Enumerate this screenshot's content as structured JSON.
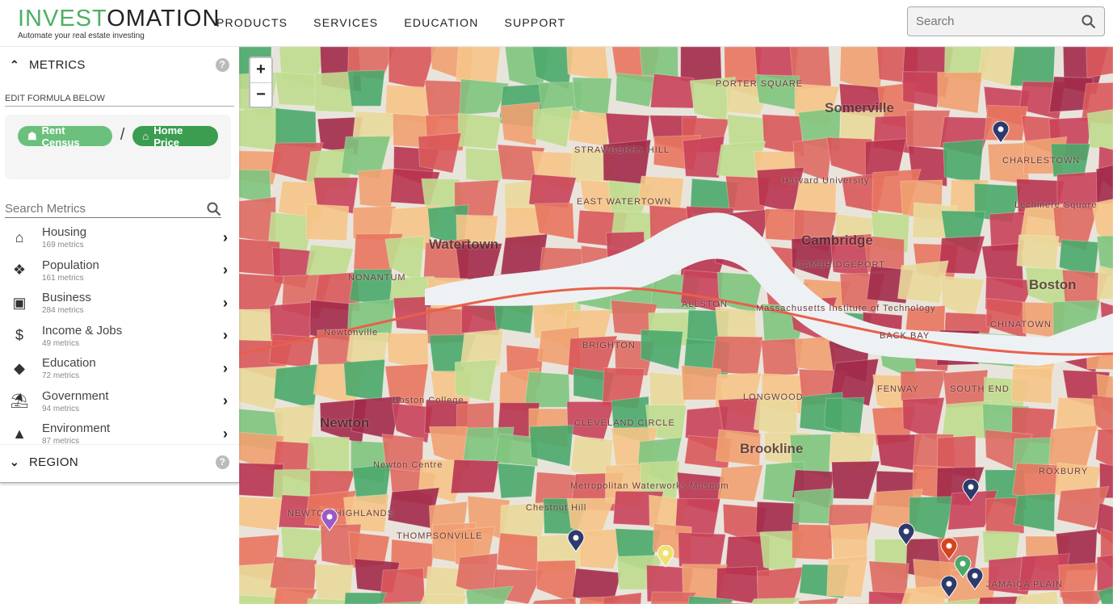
{
  "header": {
    "logo_part1": "INVEST",
    "logo_part2": "OMATION",
    "tagline": "Automate your real estate investing",
    "nav": [
      "PRODUCTS",
      "SERVICES",
      "EDUCATION",
      "SUPPORT"
    ],
    "search_placeholder": "Search"
  },
  "sidebar": {
    "metrics_title": "METRICS",
    "edit_formula_label": "EDIT FORMULA BELOW",
    "formula": {
      "left": "Rent Census",
      "operator": "/",
      "right": "Home Price"
    },
    "search_placeholder": "Search Metrics",
    "categories": [
      {
        "name": "Housing",
        "count": "169 metrics",
        "icon": "home-icon"
      },
      {
        "name": "Population",
        "count": "161 metrics",
        "icon": "people-icon"
      },
      {
        "name": "Business",
        "count": "284 metrics",
        "icon": "factory-icon"
      },
      {
        "name": "Income & Jobs",
        "count": "49 metrics",
        "icon": "dollar-icon"
      },
      {
        "name": "Education",
        "count": "72 metrics",
        "icon": "graduation-cap-icon"
      },
      {
        "name": "Government",
        "count": "94 metrics",
        "icon": "bank-icon"
      },
      {
        "name": "Environment",
        "count": "87 metrics",
        "icon": "mountain-icon"
      }
    ],
    "region_title": "REGION"
  },
  "colors": {
    "green": "#4caf63",
    "chip_light": "#6cc07e",
    "chip_dark": "#3a9d50"
  },
  "map": {
    "zoom_in": "+",
    "zoom_out": "−",
    "labels_big": [
      "Somerville",
      "Watertown",
      "Cambridge",
      "Boston",
      "Newton",
      "Brookline"
    ],
    "labels_small": [
      "Chestnut Hill",
      "Newton Centre",
      "NONANTUM",
      "Newtonville",
      "BRIGHTON",
      "ALLSTON",
      "BACK BAY",
      "FENWAY",
      "ROXBURY",
      "JAMAICA PLAIN",
      "SOUTH END",
      "CHINATOWN",
      "EAST WATERTOWN",
      "CAMBRIDGEPORT",
      "THOMPSONVILLE",
      "NEWTON HIGHLANDS",
      "PORTER SQUARE",
      "Lechmere Square",
      "Harvard University",
      "Massachusetts Institute of Technology",
      "Boston College",
      "Metropolitan Waterworks Museum",
      "CLEVELAND CIRCLE",
      "LONGWOOD",
      "STRAWBERRY HILL",
      "CHARLESTOWN"
    ]
  }
}
